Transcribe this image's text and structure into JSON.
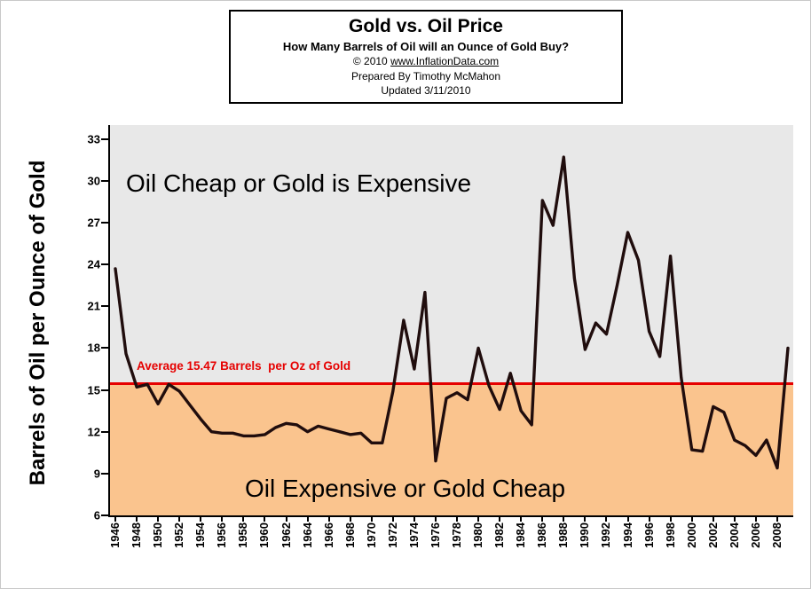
{
  "title_box": {
    "title": "Gold vs. Oil Price",
    "subtitle": "How Many Barrels of Oil will an Ounce of Gold Buy?",
    "copyright_prefix": "© 2010 ",
    "copyright_link": "www.InflationData.com",
    "prepared_by": "Prepared By Timothy McMahon",
    "updated": "Updated 3/11/2010"
  },
  "colors": {
    "upper_bg": "#e8e8e8",
    "lower_bg": "#fac48e",
    "line": "#200d0d",
    "average": "#e60000",
    "axis": "#000000"
  },
  "chart_data": {
    "type": "line",
    "title": "Gold vs. Oil Price",
    "subtitle": "How Many Barrels of Oil will an Ounce of Gold Buy?",
    "xlabel": "",
    "ylabel": "Barrels of Oil per Ounce of Gold",
    "ylim": [
      6,
      34
    ],
    "yticks": [
      6,
      9,
      12,
      15,
      18,
      21,
      24,
      27,
      30,
      33
    ],
    "xtick_step": 2,
    "grid": false,
    "legend": false,
    "average": 15.47,
    "average_label": "Average 15.47 Barrels  per Oz of Gold",
    "annotations": {
      "upper_text": "Oil Cheap or Gold is Expensive",
      "lower_text": "Oil  Expensive or Gold Cheap"
    },
    "x": [
      1946,
      1947,
      1948,
      1949,
      1950,
      1951,
      1952,
      1953,
      1954,
      1955,
      1956,
      1957,
      1958,
      1959,
      1960,
      1961,
      1962,
      1963,
      1964,
      1965,
      1966,
      1967,
      1968,
      1969,
      1970,
      1971,
      1972,
      1973,
      1974,
      1975,
      1976,
      1977,
      1978,
      1979,
      1980,
      1981,
      1982,
      1983,
      1984,
      1985,
      1986,
      1987,
      1988,
      1989,
      1990,
      1991,
      1992,
      1993,
      1994,
      1995,
      1996,
      1997,
      1998,
      1999,
      2000,
      2001,
      2002,
      2003,
      2004,
      2005,
      2006,
      2007,
      2008,
      2009
    ],
    "series": [
      {
        "name": "Barrels of Oil per Ounce of Gold",
        "values": [
          23.7,
          17.6,
          15.2,
          15.4,
          14.0,
          15.4,
          14.9,
          13.9,
          12.9,
          12.0,
          11.9,
          11.9,
          11.7,
          11.7,
          11.8,
          12.3,
          12.6,
          12.5,
          12.0,
          12.4,
          12.2,
          12.0,
          11.8,
          11.9,
          11.2,
          11.2,
          14.9,
          20.0,
          16.5,
          22.0,
          9.9,
          14.4,
          14.8,
          14.3,
          18.0,
          15.3,
          13.6,
          16.2,
          13.5,
          12.5,
          28.6,
          26.8,
          31.7,
          23.0,
          17.9,
          19.8,
          19.0,
          22.5,
          26.3,
          24.3,
          19.2,
          17.4,
          24.6,
          15.9,
          10.7,
          10.6,
          13.8,
          13.4,
          11.4,
          11.0,
          10.3,
          11.4,
          9.4,
          18.0
        ]
      }
    ]
  }
}
